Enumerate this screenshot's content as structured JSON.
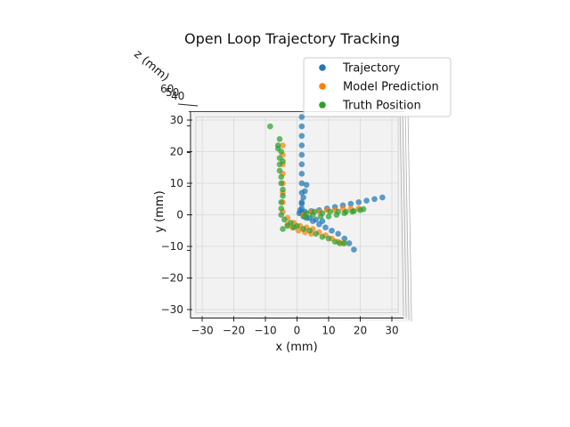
{
  "chart_data": {
    "type": "scatter",
    "projection": "3d-top-view",
    "title": "Open Loop Trajectory Tracking",
    "xlabel": "x (mm)",
    "ylabel": "y (mm)",
    "zlabel": "z (mm)",
    "xlim": [
      -32,
      32
    ],
    "ylim": [
      -31,
      31
    ],
    "xticks": [
      -30,
      -20,
      -10,
      0,
      10,
      20,
      30
    ],
    "yticks": [
      30,
      20,
      10,
      0,
      -10,
      -20,
      -30
    ],
    "xtick_labels": [
      "−30",
      "−20",
      "−10",
      "0",
      "10",
      "20",
      "30"
    ],
    "ytick_labels": [
      "30",
      "20",
      "10",
      "0",
      "−10",
      "−20",
      "−30"
    ],
    "ztick_labels": [
      "60",
      "50",
      "40"
    ],
    "grid": true,
    "legend_position": "top-right",
    "series": [
      {
        "name": "Trajectory",
        "color": "#1f77b4",
        "points": [
          [
            1.5,
            31
          ],
          [
            1.5,
            28
          ],
          [
            1.5,
            25
          ],
          [
            1.5,
            22
          ],
          [
            1.5,
            19
          ],
          [
            1.5,
            16
          ],
          [
            1.5,
            13
          ],
          [
            1.5,
            10
          ],
          [
            1.5,
            7
          ],
          [
            1.5,
            4
          ],
          [
            1.5,
            2
          ],
          [
            1.5,
            0.5
          ],
          [
            3,
            9.5
          ],
          [
            2.5,
            7.5
          ],
          [
            2,
            5.5
          ],
          [
            1.5,
            3.5
          ],
          [
            1,
            1.5
          ],
          [
            0.7,
            0.5
          ],
          [
            2.5,
            1
          ],
          [
            4.5,
            1.2
          ],
          [
            7,
            1.5
          ],
          [
            9.5,
            2
          ],
          [
            12,
            2.5
          ],
          [
            14.5,
            3
          ],
          [
            17,
            3.5
          ],
          [
            19.5,
            4
          ],
          [
            22,
            4.5
          ],
          [
            24.5,
            5
          ],
          [
            27,
            5.5
          ],
          [
            3,
            -1
          ],
          [
            5,
            -2
          ],
          [
            7,
            -3
          ],
          [
            9,
            -4
          ],
          [
            11,
            -5
          ],
          [
            13,
            -6
          ],
          [
            15,
            -7.5
          ],
          [
            16.5,
            -9
          ],
          [
            18,
            -11
          ],
          [
            2,
            -0.5
          ],
          [
            4,
            -1
          ],
          [
            6,
            -1.5
          ],
          [
            8,
            -2
          ]
        ]
      },
      {
        "name": "Model Prediction",
        "color": "#ff7f0e",
        "points": [
          [
            -4.5,
            22
          ],
          [
            -4.5,
            19
          ],
          [
            -4.5,
            16
          ],
          [
            -4.5,
            13
          ],
          [
            -4.5,
            10
          ],
          [
            -4.5,
            7
          ],
          [
            -4.5,
            4
          ],
          [
            -4.5,
            1
          ],
          [
            -3,
            -1
          ],
          [
            -1,
            -2.5
          ],
          [
            1,
            -3.5
          ],
          [
            3,
            -4
          ],
          [
            5,
            -4.5
          ],
          [
            7,
            -5.5
          ],
          [
            9,
            -6.5
          ],
          [
            11,
            -7.5
          ],
          [
            13,
            -8.5
          ],
          [
            14.5,
            -9
          ],
          [
            2,
            0
          ],
          [
            4.5,
            1
          ],
          [
            7,
            1
          ],
          [
            9.5,
            1.5
          ],
          [
            12,
            1.5
          ],
          [
            14.5,
            2
          ],
          [
            17,
            2
          ],
          [
            19.5,
            2
          ],
          [
            -3,
            -3
          ],
          [
            -1.5,
            -4
          ],
          [
            0.5,
            -5
          ],
          [
            2.5,
            -5.5
          ],
          [
            4.5,
            -6
          ]
        ]
      },
      {
        "name": "Truth Position",
        "color": "#2ca02c",
        "points": [
          [
            -8.5,
            28
          ],
          [
            -6,
            21
          ],
          [
            -5.5,
            18
          ],
          [
            -5.5,
            16
          ],
          [
            -5.5,
            14
          ],
          [
            -5,
            12
          ],
          [
            -5,
            10
          ],
          [
            -4.5,
            8
          ],
          [
            -4.5,
            6
          ],
          [
            -5,
            4
          ],
          [
            -5,
            2
          ],
          [
            -5,
            0
          ],
          [
            -5.5,
            24
          ],
          [
            -6,
            22
          ],
          [
            -5,
            20
          ],
          [
            -4.5,
            17
          ],
          [
            -4,
            -1.5
          ],
          [
            -2,
            -2.5
          ],
          [
            0,
            -3.5
          ],
          [
            2,
            -4.5
          ],
          [
            4,
            -5
          ],
          [
            6,
            -6
          ],
          [
            8,
            -7
          ],
          [
            10,
            -7.5
          ],
          [
            12,
            -8.5
          ],
          [
            13.5,
            -9
          ],
          [
            15,
            -9
          ],
          [
            -3,
            -3.5
          ],
          [
            -4.5,
            -4.5
          ],
          [
            -1,
            -4
          ],
          [
            2.5,
            -0.5
          ],
          [
            5,
            0
          ],
          [
            7.5,
            -0.5
          ],
          [
            10,
            -0.5
          ],
          [
            12.5,
            0
          ],
          [
            15,
            0.5
          ],
          [
            17.5,
            1
          ],
          [
            20,
            1.5
          ],
          [
            21,
            1.8
          ],
          [
            3,
            0.5
          ],
          [
            5.5,
            1
          ],
          [
            8,
            0.5
          ],
          [
            10.5,
            1
          ],
          [
            13,
            1
          ],
          [
            15.5,
            1
          ],
          [
            18,
            1.2
          ]
        ]
      }
    ]
  }
}
